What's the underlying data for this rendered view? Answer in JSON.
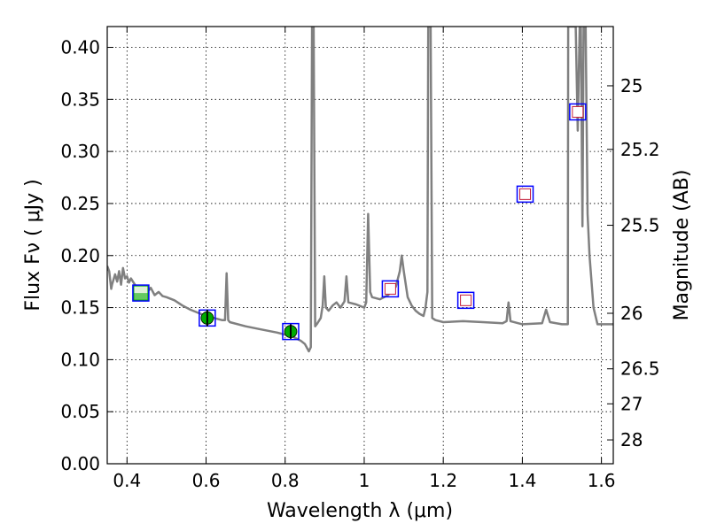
{
  "chart_data": {
    "type": "scatter",
    "xlabel": "Wavelength  λ (μm)",
    "ylabel": "Flux  Fν  ( μJy )",
    "y2label": "Magnitude (AB)",
    "xlim": [
      0.35,
      1.63
    ],
    "ylim": [
      0.0,
      0.42
    ],
    "grid": true,
    "x_ticks": [
      0.4,
      0.6,
      0.8,
      1.0,
      1.2,
      1.4,
      1.6
    ],
    "x_tick_labels": [
      "0.4",
      "0.6",
      "0.8",
      "1",
      "1.2",
      "1.4",
      "1.6"
    ],
    "y_ticks": [
      0.0,
      0.05,
      0.1,
      0.15,
      0.2,
      0.25,
      0.3,
      0.35,
      0.4
    ],
    "y_tick_labels": [
      "0.00",
      "0.05",
      "0.10",
      "0.15",
      "0.20",
      "0.25",
      "0.30",
      "0.35",
      "0.40"
    ],
    "right_axis_ticks": [
      {
        "label": "25",
        "mag": 25.0
      },
      {
        "label": "25.2",
        "mag": 25.2
      },
      {
        "label": "25.5",
        "mag": 25.5
      },
      {
        "label": "26",
        "mag": 26.0
      },
      {
        "label": "26.5",
        "mag": 26.5
      },
      {
        "label": "27",
        "mag": 27.0
      },
      {
        "label": "28",
        "mag": 28.0
      }
    ],
    "model_spectrum": {
      "color": "#808080",
      "points": [
        [
          0.35,
          0.19
        ],
        [
          0.355,
          0.185
        ],
        [
          0.36,
          0.168
        ],
        [
          0.362,
          0.172
        ],
        [
          0.37,
          0.182
        ],
        [
          0.375,
          0.175
        ],
        [
          0.38,
          0.185
        ],
        [
          0.385,
          0.172
        ],
        [
          0.39,
          0.188
        ],
        [
          0.395,
          0.178
        ],
        [
          0.4,
          0.18
        ],
        [
          0.405,
          0.174
        ],
        [
          0.41,
          0.178
        ],
        [
          0.42,
          0.172
        ],
        [
          0.43,
          0.168
        ],
        [
          0.44,
          0.17
        ],
        [
          0.45,
          0.164
        ],
        [
          0.46,
          0.169
        ],
        [
          0.47,
          0.162
        ],
        [
          0.48,
          0.165
        ],
        [
          0.49,
          0.161
        ],
        [
          0.5,
          0.16
        ],
        [
          0.52,
          0.157
        ],
        [
          0.54,
          0.152
        ],
        [
          0.56,
          0.148
        ],
        [
          0.58,
          0.145
        ],
        [
          0.6,
          0.142
        ],
        [
          0.62,
          0.14
        ],
        [
          0.64,
          0.138
        ],
        [
          0.648,
          0.138
        ],
        [
          0.652,
          0.183
        ],
        [
          0.656,
          0.138
        ],
        [
          0.66,
          0.136
        ],
        [
          0.7,
          0.132
        ],
        [
          0.74,
          0.129
        ],
        [
          0.78,
          0.126
        ],
        [
          0.82,
          0.122
        ],
        [
          0.84,
          0.118
        ],
        [
          0.85,
          0.115
        ],
        [
          0.86,
          0.108
        ],
        [
          0.865,
          0.112
        ],
        [
          0.868,
          0.42
        ],
        [
          0.872,
          0.42
        ],
        [
          0.876,
          0.132
        ],
        [
          0.88,
          0.134
        ],
        [
          0.89,
          0.14
        ],
        [
          0.895,
          0.152
        ],
        [
          0.899,
          0.18
        ],
        [
          0.903,
          0.15
        ],
        [
          0.91,
          0.147
        ],
        [
          0.92,
          0.152
        ],
        [
          0.93,
          0.155
        ],
        [
          0.94,
          0.15
        ],
        [
          0.95,
          0.156
        ],
        [
          0.955,
          0.18
        ],
        [
          0.96,
          0.155
        ],
        [
          0.98,
          0.153
        ],
        [
          1.0,
          0.15
        ],
        [
          1.005,
          0.155
        ],
        [
          1.01,
          0.24
        ],
        [
          1.015,
          0.165
        ],
        [
          1.02,
          0.16
        ],
        [
          1.04,
          0.158
        ],
        [
          1.06,
          0.162
        ],
        [
          1.08,
          0.17
        ],
        [
          1.09,
          0.185
        ],
        [
          1.095,
          0.2
        ],
        [
          1.1,
          0.185
        ],
        [
          1.11,
          0.16
        ],
        [
          1.12,
          0.152
        ],
        [
          1.13,
          0.147
        ],
        [
          1.14,
          0.144
        ],
        [
          1.15,
          0.142
        ],
        [
          1.155,
          0.15
        ],
        [
          1.16,
          0.165
        ],
        [
          1.162,
          0.42
        ],
        [
          1.168,
          0.42
        ],
        [
          1.172,
          0.14
        ],
        [
          1.18,
          0.138
        ],
        [
          1.2,
          0.136
        ],
        [
          1.25,
          0.137
        ],
        [
          1.3,
          0.136
        ],
        [
          1.35,
          0.135
        ],
        [
          1.36,
          0.137
        ],
        [
          1.365,
          0.155
        ],
        [
          1.37,
          0.137
        ],
        [
          1.4,
          0.134
        ],
        [
          1.45,
          0.135
        ],
        [
          1.46,
          0.148
        ],
        [
          1.47,
          0.136
        ],
        [
          1.5,
          0.134
        ],
        [
          1.515,
          0.134
        ],
        [
          1.516,
          0.42
        ],
        [
          1.535,
          0.42
        ],
        [
          1.54,
          0.32
        ],
        [
          1.545,
          0.42
        ],
        [
          1.548,
          0.42
        ],
        [
          1.552,
          0.228
        ],
        [
          1.555,
          0.42
        ],
        [
          1.56,
          0.42
        ],
        [
          1.565,
          0.24
        ],
        [
          1.57,
          0.2
        ],
        [
          1.58,
          0.15
        ],
        [
          1.59,
          0.134
        ],
        [
          1.63,
          0.134
        ]
      ]
    },
    "photometry_filled": {
      "marker_color": "#00aa00",
      "box_color": "#0000ff",
      "points": [
        {
          "x": 0.603,
          "y": 0.14,
          "yerr": 0.008
        },
        {
          "x": 0.814,
          "y": 0.127,
          "yerr": 0.007
        }
      ]
    },
    "photometry_hatched": {
      "points": [
        {
          "x": 0.435,
          "y": 0.164
        }
      ]
    },
    "photometry_open": {
      "marker_color": "#c41e3a",
      "box_color": "#0000ff",
      "points": [
        {
          "x": 1.066,
          "y": 0.168
        },
        {
          "x": 1.257,
          "y": 0.157
        },
        {
          "x": 1.407,
          "y": 0.259
        },
        {
          "x": 1.54,
          "y": 0.338
        }
      ]
    }
  }
}
